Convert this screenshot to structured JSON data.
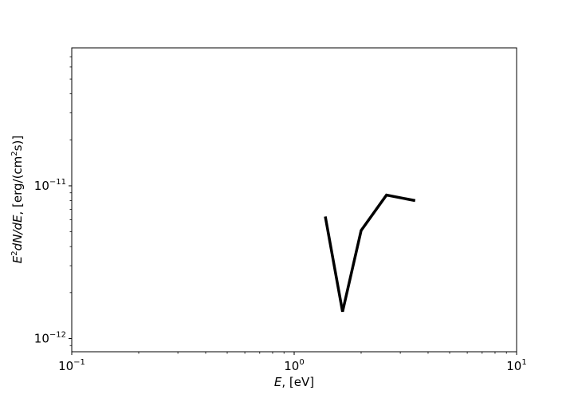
{
  "chart_data": {
    "type": "line",
    "title": "",
    "xlabel": {
      "base": "E",
      "rest": ", [eV]"
    },
    "ylabel": {
      "pre": "E",
      "sup": "2",
      "mid": "dN/dE",
      "rest1": ", [erg/(cm",
      "sup2": "2",
      "rest2": "s)]"
    },
    "x_scale": "log",
    "y_scale": "log",
    "xlim": [
      0.1,
      10
    ],
    "ylim": [
      8.2e-13,
      8e-11
    ],
    "x_ticks": [
      {
        "value": 0.1,
        "base": "10",
        "exp": "−1"
      },
      {
        "value": 1,
        "base": "10",
        "exp": "0"
      },
      {
        "value": 10,
        "base": "10",
        "exp": "1"
      }
    ],
    "y_ticks": [
      {
        "value": 1e-12,
        "base": "10",
        "exp": "−12"
      },
      {
        "value": 1e-11,
        "base": "10",
        "exp": "−11"
      }
    ],
    "grid": false,
    "series": [
      {
        "color": "#000000",
        "x": [
          1.38,
          1.65,
          2.0,
          2.6,
          3.5
        ],
        "y": [
          6.3e-12,
          1.5e-12,
          5.1e-12,
          8.7e-12,
          8e-12
        ]
      }
    ]
  }
}
